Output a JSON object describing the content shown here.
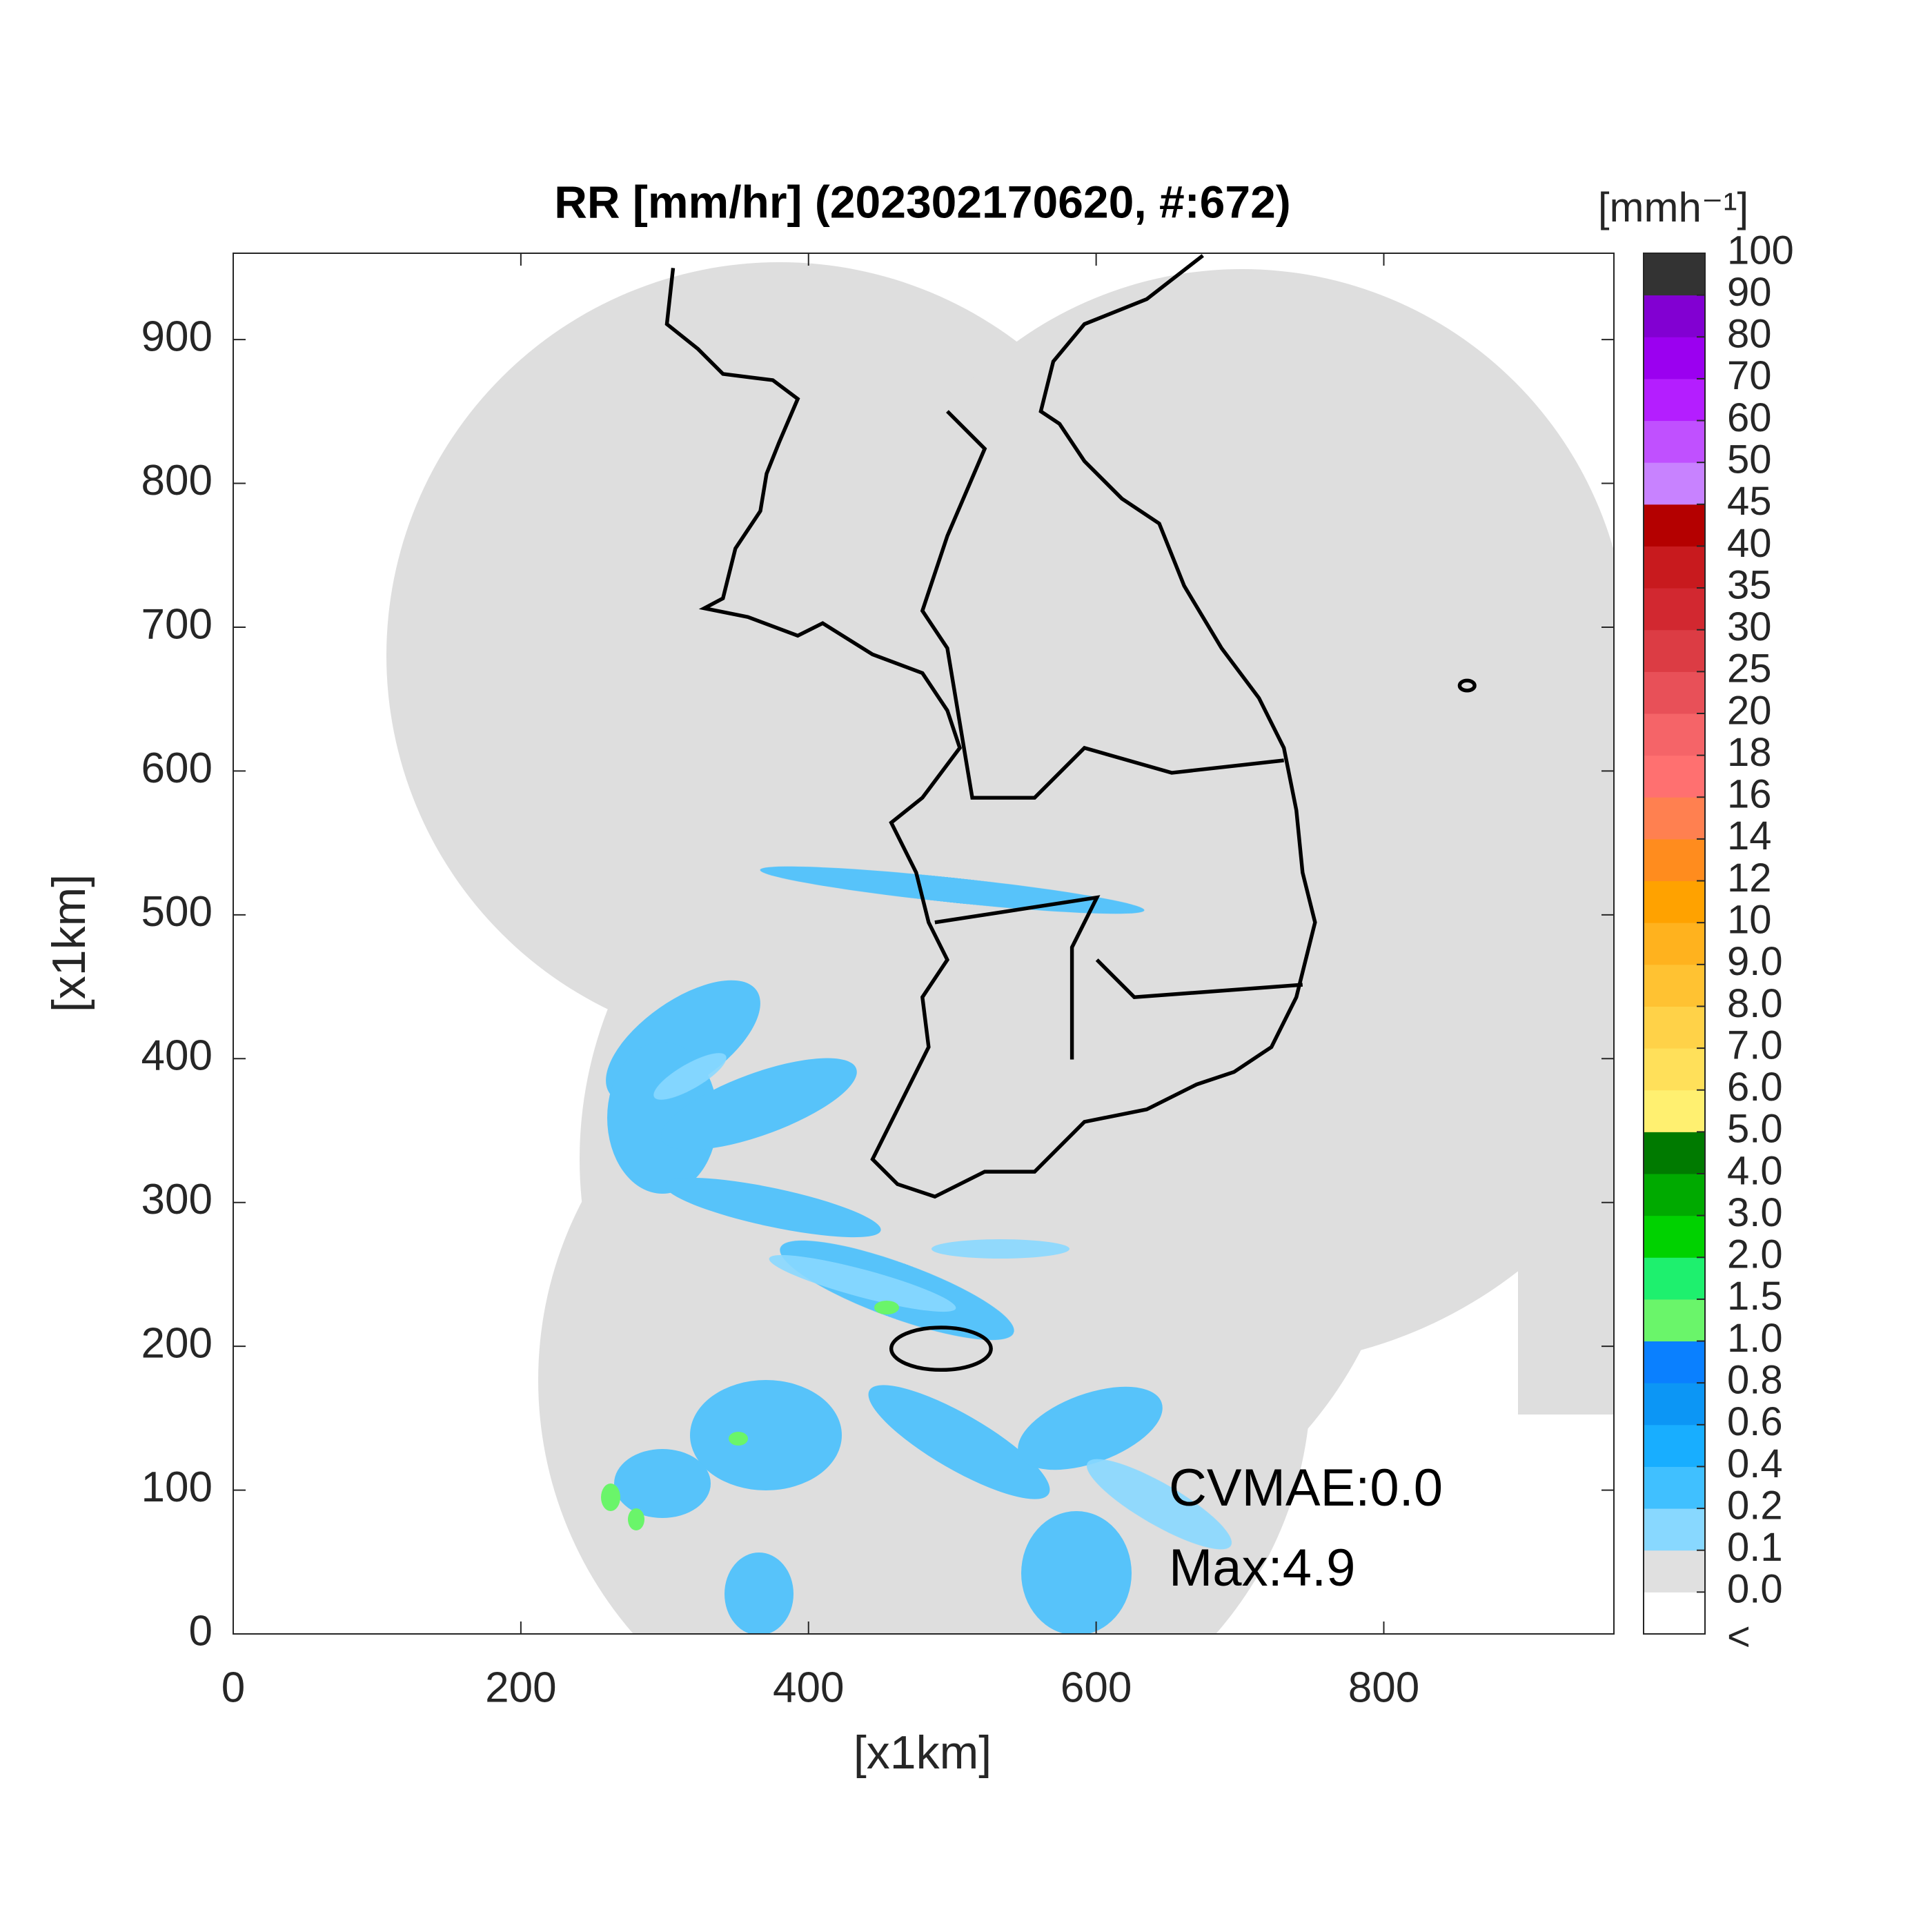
{
  "chart_data": {
    "type": "map",
    "title": "RR [mm/hr] (202302170620, #:672)",
    "xlabel": "[x1km]",
    "ylabel": "[x1km]",
    "xlim": [
      0,
      960
    ],
    "ylim": [
      0,
      960
    ],
    "xticks": [
      0,
      200,
      400,
      600,
      800
    ],
    "yticks": [
      0,
      100,
      200,
      300,
      400,
      500,
      600,
      700,
      800,
      900
    ],
    "annotations": [
      "CVMAE:0.0",
      "Max:4.9"
    ],
    "colorbar": {
      "title": "[mmh⁻¹]",
      "under_label": "<",
      "ticks": [
        {
          "value": 0,
          "label": "0.0"
        },
        0.1,
        0.2,
        0.4,
        0.6,
        0.8,
        {
          "value": 1,
          "label": "1.0"
        },
        1.5,
        {
          "value": 2,
          "label": "2.0"
        },
        {
          "value": 3,
          "label": "3.0"
        },
        {
          "value": 4,
          "label": "4.0"
        },
        {
          "value": 5,
          "label": "5.0"
        },
        {
          "value": 6,
          "label": "6.0"
        },
        {
          "value": 7,
          "label": "7.0"
        },
        {
          "value": 8,
          "label": "8.0"
        },
        {
          "value": 9,
          "label": "9.0"
        },
        10,
        12,
        14,
        16,
        18,
        20,
        25,
        30,
        35,
        40,
        45,
        50,
        60,
        70,
        80,
        90,
        100
      ],
      "colors": [
        "#ffffff",
        "#e0e0e0",
        "#88d8ff",
        "#40c0ff",
        "#18aeff",
        "#0c96f5",
        "#0a80ff",
        "#6af56a",
        "#1ef06e",
        "#00d200",
        "#00aa00",
        "#007a00",
        "#fff070",
        "#ffe05a",
        "#ffd248",
        "#ffc232",
        "#ffb21e",
        "#ffa200",
        "#ff8c1e",
        "#ff8050",
        "#ff7070",
        "#f56468",
        "#e85058",
        "#dc3c44",
        "#d22830",
        "#c81a1e",
        "#b40000",
        "#c882ff",
        "#c050ff",
        "#b41eff",
        "#9b00f0",
        "#8200d2",
        "#333333"
      ]
    }
  }
}
